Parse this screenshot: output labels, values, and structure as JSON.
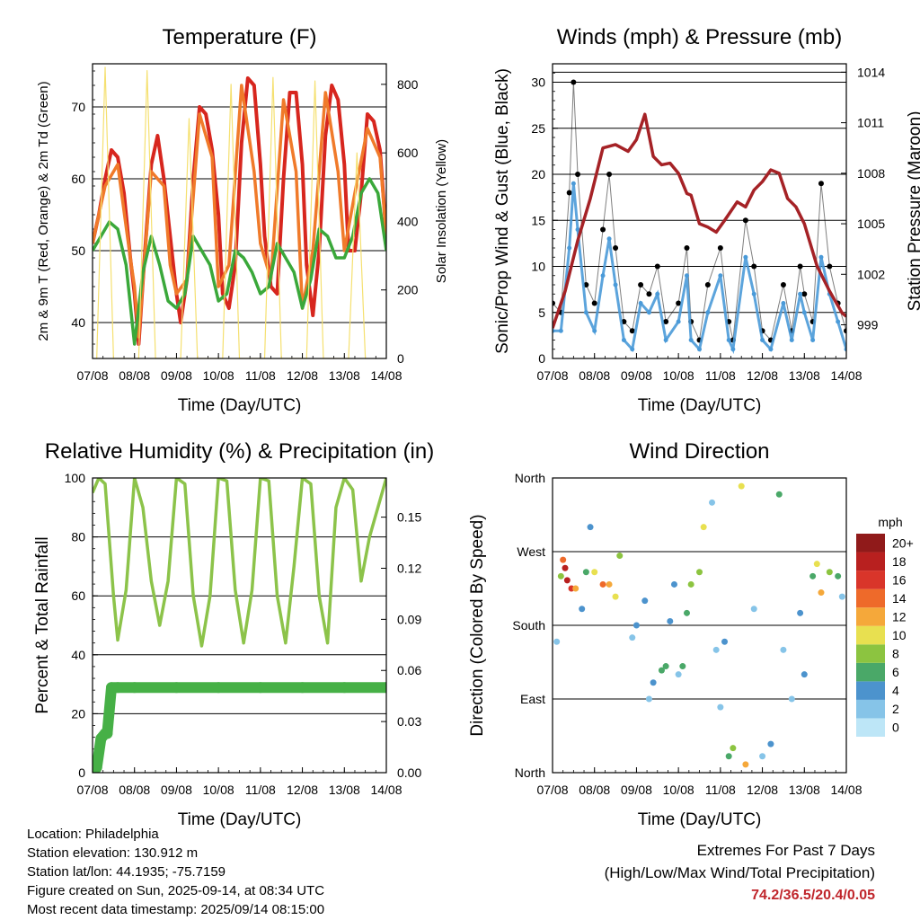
{
  "footer": {
    "location": "Location: Philadelphia",
    "elevation": "Station elevation: 130.912 m",
    "latlon": "Station lat/lon: 44.1935; -75.7159",
    "created": "Figure created on Sun, 2025-09-14, at 08:34 UTC",
    "timestamp": "Most recent data timestamp: 2025/09/14 08:15:00",
    "extremes_title": "Extremes For Past 7 Days",
    "extremes_legend": "(High/Low/Max Wind/Total Precipitation)",
    "extremes_values": "74.2/36.5/20.4/0.05"
  },
  "chart_data": [
    {
      "id": "temperature",
      "type": "line",
      "title": "Temperature (F)",
      "xlabel": "Time (Day/UTC)",
      "ylabel": "2m & 9m T (Red, Orange) & 2m Td (Green)",
      "y2label": "Solar Insolation (Yellow)",
      "x_ticks": [
        "07/08",
        "08/08",
        "09/08",
        "10/08",
        "11/08",
        "12/08",
        "13/08",
        "14/08"
      ],
      "xlim": [
        0,
        7
      ],
      "ylim": [
        35,
        76
      ],
      "y_ticks": [
        40,
        50,
        60,
        70
      ],
      "y2lim": [
        0,
        860
      ],
      "y2_ticks": [
        0,
        200,
        400,
        600,
        800
      ],
      "grid": true,
      "series": [
        {
          "name": "2m T",
          "color": "#d7261e",
          "x": [
            0,
            0.15,
            0.3,
            0.45,
            0.6,
            0.75,
            0.9,
            1.0,
            1.1,
            1.25,
            1.4,
            1.55,
            1.7,
            1.85,
            2.0,
            2.1,
            2.25,
            2.4,
            2.55,
            2.7,
            2.85,
            3.0,
            3.1,
            3.25,
            3.4,
            3.55,
            3.7,
            3.85,
            4.0,
            4.1,
            4.25,
            4.4,
            4.55,
            4.7,
            4.85,
            5.0,
            5.1,
            5.25,
            5.4,
            5.55,
            5.7,
            5.85,
            6.0,
            6.1,
            6.25,
            6.4,
            6.55,
            6.7,
            6.85,
            7.0
          ],
          "y": [
            51,
            55,
            60,
            64,
            63,
            58,
            49,
            44,
            37,
            50,
            62,
            66,
            60,
            52,
            44,
            40,
            46,
            60,
            70,
            69,
            64,
            55,
            44,
            42,
            48,
            65,
            74,
            73,
            62,
            52,
            45,
            44,
            60,
            72,
            72,
            62,
            48,
            41,
            50,
            66,
            73,
            71,
            62,
            50,
            50,
            58,
            69,
            68,
            64,
            52
          ]
        },
        {
          "name": "9m T",
          "color": "#f07a2a",
          "x": [
            0,
            0.3,
            0.6,
            0.9,
            1.0,
            1.1,
            1.4,
            1.7,
            1.85,
            2.0,
            2.25,
            2.55,
            2.85,
            3.0,
            3.25,
            3.55,
            3.85,
            4.0,
            4.25,
            4.55,
            4.85,
            5.0,
            5.25,
            5.55,
            5.85,
            6.0,
            6.25,
            6.55,
            6.85,
            7.0
          ],
          "y": [
            51,
            59,
            62,
            49,
            45,
            38,
            61,
            59,
            48,
            44,
            46,
            69,
            63,
            45,
            48,
            73,
            61,
            51,
            46,
            71,
            61,
            42,
            50,
            72,
            61,
            50,
            58,
            67,
            63,
            52
          ]
        },
        {
          "name": "2m Td",
          "color": "#3aa83a",
          "x": [
            0,
            0.2,
            0.4,
            0.6,
            0.8,
            1.0,
            1.2,
            1.4,
            1.6,
            1.8,
            2.0,
            2.2,
            2.4,
            2.6,
            2.8,
            3.0,
            3.2,
            3.4,
            3.6,
            3.8,
            4.0,
            4.2,
            4.4,
            4.6,
            4.8,
            5.0,
            5.2,
            5.4,
            5.6,
            5.8,
            6.0,
            6.2,
            6.4,
            6.6,
            6.8,
            7.0
          ],
          "y": [
            50,
            52,
            54,
            53,
            48,
            37,
            47,
            52,
            48,
            43,
            42,
            44,
            52,
            50,
            48,
            43,
            44,
            50,
            49,
            47,
            44,
            45,
            51,
            49,
            47,
            42,
            46,
            53,
            52,
            49,
            49,
            52,
            58,
            60,
            58,
            50
          ]
        },
        {
          "name": "Solar Insolation",
          "color": "#f5e070",
          "axis": "y2",
          "x": [
            0.1,
            0.3,
            0.5,
            1.1,
            1.3,
            1.5,
            2.1,
            2.3,
            2.5,
            3.1,
            3.3,
            3.5,
            4.1,
            4.3,
            4.5,
            5.1,
            5.3,
            5.5,
            6.1,
            6.3,
            6.5
          ],
          "y": [
            0,
            850,
            0,
            0,
            840,
            0,
            0,
            700,
            0,
            0,
            800,
            0,
            0,
            820,
            0,
            0,
            810,
            0,
            0,
            600,
            0
          ]
        }
      ]
    },
    {
      "id": "winds",
      "type": "scatter",
      "title": "Winds (mph) & Pressure (mb)",
      "xlabel": "Time (Day/UTC)",
      "ylabel": "Sonic/Prop Wind & Gust (Blue, Black)",
      "y2label": "Station Pressure (Maroon)",
      "x_ticks": [
        "07/08",
        "08/08",
        "09/08",
        "10/08",
        "11/08",
        "12/08",
        "13/08",
        "14/08"
      ],
      "xlim": [
        0,
        7
      ],
      "ylim": [
        0,
        32
      ],
      "y_ticks": [
        0,
        5,
        10,
        15,
        20,
        25,
        30
      ],
      "y2lim": [
        997,
        1014.5
      ],
      "y2_ticks": [
        999,
        1002,
        1005,
        1008,
        1011,
        1014
      ],
      "grid": true,
      "series": [
        {
          "name": "Gust",
          "color": "#000000",
          "x": [
            0,
            0.2,
            0.4,
            0.5,
            0.6,
            0.8,
            1.0,
            1.2,
            1.35,
            1.5,
            1.7,
            1.9,
            2.1,
            2.3,
            2.5,
            2.7,
            3.0,
            3.2,
            3.3,
            3.5,
            3.7,
            4.0,
            4.2,
            4.3,
            4.6,
            4.8,
            5.0,
            5.2,
            5.5,
            5.7,
            5.9,
            6.0,
            6.2,
            6.4,
            6.6,
            6.8,
            7.0
          ],
          "y": [
            6,
            5,
            18,
            30,
            20,
            8,
            6,
            14,
            20,
            12,
            4,
            3,
            8,
            7,
            10,
            4,
            6,
            12,
            4,
            2,
            8,
            12,
            4,
            2,
            15,
            10,
            3,
            2,
            8,
            3,
            10,
            7,
            4,
            19,
            10,
            6,
            3
          ]
        },
        {
          "name": "Wind",
          "color": "#4a9ad8",
          "x": [
            0,
            0.2,
            0.4,
            0.5,
            0.6,
            0.8,
            1.0,
            1.2,
            1.35,
            1.5,
            1.7,
            1.9,
            2.1,
            2.3,
            2.5,
            2.7,
            3.0,
            3.2,
            3.3,
            3.5,
            3.7,
            4.0,
            4.2,
            4.3,
            4.6,
            4.8,
            5.0,
            5.2,
            5.5,
            5.7,
            5.9,
            6.0,
            6.2,
            6.4,
            6.6,
            6.8,
            7.0
          ],
          "y": [
            3,
            3,
            12,
            19,
            14,
            5,
            3,
            9,
            13,
            8,
            2,
            1,
            6,
            5,
            7,
            2,
            4,
            9,
            2,
            1,
            5,
            9,
            2,
            1,
            11,
            7,
            2,
            1,
            6,
            2,
            7,
            5,
            2,
            11,
            7,
            4,
            1
          ]
        },
        {
          "name": "Pressure",
          "color": "#a52226",
          "axis": "y2",
          "x": [
            0,
            0.3,
            0.6,
            0.9,
            1.2,
            1.5,
            1.8,
            2.0,
            2.2,
            2.4,
            2.6,
            2.8,
            3.0,
            3.2,
            3.3,
            3.5,
            3.7,
            3.9,
            4.1,
            4.4,
            4.6,
            4.8,
            5.0,
            5.2,
            5.4,
            5.6,
            5.8,
            6.0,
            6.3,
            6.6,
            6.9,
            7.0
          ],
          "y": [
            998.8,
            1001,
            1004,
            1006.5,
            1009.5,
            1009.7,
            1009.3,
            1010,
            1011.5,
            1009,
            1008.5,
            1008.6,
            1008,
            1006.8,
            1006.7,
            1005,
            1004.8,
            1004.5,
            1005.2,
            1006.3,
            1006,
            1007,
            1007.5,
            1008.2,
            1008,
            1006.5,
            1006,
            1005,
            1002.5,
            1001,
            999.7,
            999.5
          ]
        }
      ]
    },
    {
      "id": "humidity",
      "type": "line",
      "title": "Relative Humidity (%) & Precipitation (in)",
      "xlabel": "Time (Day/UTC)",
      "ylabel": "Percent & Total Rainfall",
      "x_ticks": [
        "07/08",
        "08/08",
        "09/08",
        "10/08",
        "11/08",
        "12/08",
        "13/08",
        "14/08"
      ],
      "xlim": [
        0,
        7
      ],
      "ylim": [
        0,
        100
      ],
      "y_ticks": [
        0,
        20,
        40,
        60,
        80,
        100
      ],
      "y2lim": [
        0,
        0.173
      ],
      "y2_ticks": [
        "0.00",
        "0.03",
        "0.06",
        "0.09",
        "0.12",
        "0.15"
      ],
      "grid": true,
      "series": [
        {
          "name": "Relative Humidity",
          "color": "#8cc34a",
          "x": [
            0,
            0.15,
            0.3,
            0.5,
            0.6,
            0.8,
            1.0,
            1.2,
            1.4,
            1.6,
            1.8,
            2.0,
            2.2,
            2.4,
            2.6,
            2.8,
            3.0,
            3.2,
            3.4,
            3.6,
            3.8,
            4.0,
            4.2,
            4.4,
            4.6,
            4.8,
            5.0,
            5.2,
            5.4,
            5.6,
            5.8,
            6.0,
            6.2,
            6.4,
            6.6,
            6.8,
            7.0
          ],
          "y": [
            95,
            100,
            98,
            60,
            45,
            62,
            100,
            90,
            65,
            50,
            65,
            100,
            98,
            60,
            43,
            60,
            100,
            99,
            62,
            44,
            62,
            100,
            99,
            60,
            44,
            70,
            100,
            98,
            60,
            44,
            90,
            100,
            96,
            65,
            80,
            90,
            100
          ]
        },
        {
          "name": "Total Precipitation",
          "color": "#46b046",
          "axis": "y2",
          "marker": "circle",
          "x": [
            0,
            0.1,
            0.2,
            0.3,
            0.35,
            0.45,
            0.6,
            1.0,
            2.0,
            3.0,
            4.0,
            5.0,
            6.0,
            7.0
          ],
          "y": [
            0,
            0.003,
            0.02,
            0.023,
            0.023,
            0.05,
            0.05,
            0.05,
            0.05,
            0.05,
            0.05,
            0.05,
            0.05,
            0.05
          ]
        }
      ]
    },
    {
      "id": "direction",
      "type": "scatter",
      "title": "Wind Direction",
      "xlabel": "Time (Day/UTC)",
      "ylabel": "Direction (Colored By Speed)",
      "x_ticks": [
        "07/08",
        "08/08",
        "09/08",
        "10/08",
        "11/08",
        "12/08",
        "13/08",
        "14/08"
      ],
      "xlim": [
        0,
        7
      ],
      "ylim": [
        0,
        360
      ],
      "y_ticks": [
        "North",
        "East",
        "South",
        "West",
        "North"
      ],
      "grid": true,
      "colorbar": {
        "unit": "mph",
        "labels": [
          "0",
          "2",
          "4",
          "6",
          "8",
          "10",
          "12",
          "14",
          "16",
          "18",
          "20+"
        ],
        "colors": [
          "#bde6f7",
          "#86c4e8",
          "#4c93cd",
          "#4aa868",
          "#8cc440",
          "#e8e050",
          "#f5a83a",
          "#ee6a2a",
          "#d9352a",
          "#b8201f",
          "#901a1a"
        ]
      },
      "series": [
        {
          "name": "Direction",
          "x": [
            0.1,
            0.2,
            0.25,
            0.3,
            0.35,
            0.45,
            0.55,
            0.7,
            0.8,
            0.9,
            1.0,
            1.2,
            1.35,
            1.5,
            1.6,
            1.9,
            2.0,
            2.2,
            2.3,
            2.4,
            2.6,
            2.7,
            2.8,
            2.9,
            3.0,
            3.1,
            3.2,
            3.3,
            3.5,
            3.6,
            3.8,
            3.9,
            4.0,
            4.1,
            4.2,
            4.3,
            4.5,
            4.6,
            4.8,
            5.0,
            5.2,
            5.4,
            5.5,
            5.7,
            5.9,
            6.0,
            6.2,
            6.3,
            6.4,
            6.6,
            6.8,
            6.9
          ],
          "y": [
            160,
            240,
            260,
            250,
            235,
            225,
            225,
            200,
            245,
            300,
            245,
            230,
            230,
            215,
            265,
            165,
            180,
            210,
            90,
            110,
            125,
            130,
            185,
            230,
            120,
            130,
            195,
            230,
            245,
            300,
            330,
            150,
            80,
            160,
            20,
            30,
            350,
            10,
            200,
            20,
            35,
            340,
            150,
            90,
            195,
            120,
            240,
            255,
            220,
            245,
            240,
            215
          ],
          "speed": [
            2,
            8,
            15,
            18,
            19,
            17,
            12,
            4,
            6,
            4,
            10,
            14,
            13,
            10,
            9,
            3,
            4,
            5,
            3,
            4,
            6,
            7,
            4,
            4,
            3,
            6,
            7,
            8,
            9,
            10,
            3,
            2,
            2,
            4,
            7,
            9,
            10,
            12,
            3,
            3,
            4,
            6,
            3,
            3,
            5,
            4,
            6,
            10,
            12,
            8,
            6,
            3
          ]
        }
      ]
    }
  ]
}
